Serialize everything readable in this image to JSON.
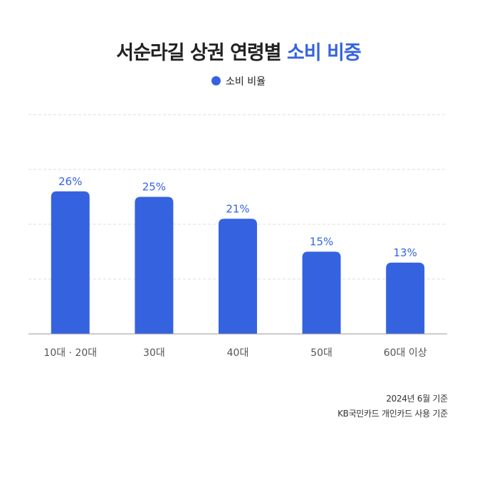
{
  "title": {
    "main": "서순라길 상권 연령별",
    "highlight": "소비 비중"
  },
  "colors": {
    "bar": "#3563e0",
    "label": "#3563e0",
    "axis": "#999999",
    "grid": "#dddddd",
    "tick": "#555555"
  },
  "chart_data": {
    "type": "bar",
    "title": "서순라길 상권 연령별 소비 비중",
    "categories": [
      "10대 · 20대",
      "30대",
      "40대",
      "50대",
      "60대 이상"
    ],
    "series": [
      {
        "name": "소비 비율",
        "values": [
          26,
          25,
          21,
          15,
          13
        ],
        "labels": [
          "26%",
          "25%",
          "21%",
          "15%",
          "13%"
        ]
      }
    ],
    "ylim": [
      0,
      40
    ],
    "grid": true,
    "legend": "top-center",
    "xlabel": "",
    "ylabel": ""
  },
  "source": {
    "line1": "2024년 6월 기준",
    "line2": "KB국민카드 개인카드 사용 기준"
  }
}
